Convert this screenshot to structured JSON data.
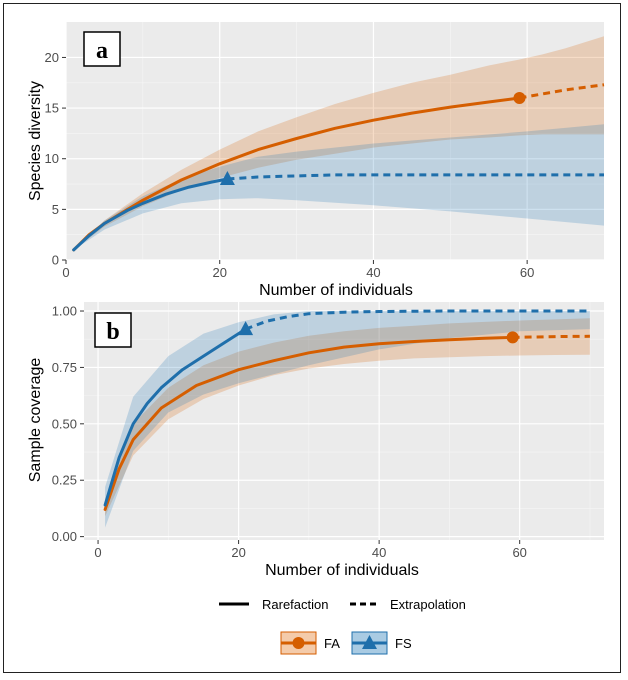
{
  "colors": {
    "FA": "#d55e00",
    "FS": "#1f6fab",
    "panel_bg": "#ebebeb",
    "grid": "#ffffff"
  },
  "legend": {
    "line_types": [
      "Rarefaction",
      "Extrapolation"
    ],
    "groups": [
      "FA",
      "FS"
    ]
  },
  "chart_data": [
    {
      "type": "line",
      "panel_label": "a",
      "title": "",
      "xlabel": "Number of individuals",
      "ylabel": "Species diversity",
      "xlim": [
        0,
        70
      ],
      "ylim": [
        0,
        23.5
      ],
      "xticks": [
        0,
        20,
        40,
        60
      ],
      "yticks": [
        0,
        5,
        10,
        15,
        20
      ],
      "grid": true,
      "series": [
        {
          "name": "FA",
          "observed": {
            "x": 59,
            "y": 16.0
          },
          "marker": "circle",
          "rarefaction": {
            "x": [
              1,
              3,
              5,
              8,
              10,
              15,
              20,
              25,
              30,
              35,
              40,
              45,
              50,
              55,
              59
            ],
            "y": [
              1.0,
              2.5,
              3.6,
              5.0,
              5.9,
              7.9,
              9.5,
              10.9,
              12.0,
              13.0,
              13.8,
              14.5,
              15.1,
              15.6,
              16.0
            ]
          },
          "extrapolation": {
            "x": [
              59,
              62,
              65,
              68,
              70
            ],
            "y": [
              16.0,
              16.4,
              16.8,
              17.1,
              17.3
            ]
          },
          "ci_lower": {
            "x": [
              1,
              5,
              10,
              15,
              20,
              25,
              30,
              35,
              40,
              45,
              50,
              55,
              59,
              62,
              65,
              70
            ],
            "y": [
              1.0,
              3.3,
              5.3,
              6.9,
              8.1,
              9.1,
              9.9,
              10.5,
              11.1,
              11.5,
              11.9,
              12.1,
              12.3,
              12.4,
              12.4,
              12.4
            ]
          },
          "ci_upper": {
            "x": [
              1,
              5,
              10,
              15,
              20,
              25,
              30,
              35,
              40,
              45,
              50,
              55,
              59,
              62,
              65,
              70
            ],
            "y": [
              1.0,
              3.9,
              6.6,
              8.9,
              10.9,
              12.7,
              14.1,
              15.4,
              16.5,
              17.5,
              18.3,
              19.2,
              19.8,
              20.3,
              20.9,
              22.1
            ]
          }
        },
        {
          "name": "FS",
          "observed": {
            "x": 21,
            "y": 8.0
          },
          "marker": "triangle",
          "rarefaction": {
            "x": [
              1,
              3,
              5,
              8,
              10,
              13,
              16,
              19,
              21
            ],
            "y": [
              1.0,
              2.4,
              3.6,
              4.9,
              5.6,
              6.5,
              7.2,
              7.7,
              8.0
            ]
          },
          "extrapolation": {
            "x": [
              21,
              25,
              30,
              35,
              40,
              50,
              60,
              70
            ],
            "y": [
              8.0,
              8.2,
              8.3,
              8.4,
              8.4,
              8.4,
              8.4,
              8.4
            ]
          },
          "ci_lower": {
            "x": [
              1,
              5,
              10,
              15,
              20,
              25,
              30,
              40,
              50,
              60,
              70
            ],
            "y": [
              1.0,
              3.0,
              4.6,
              5.6,
              6.0,
              6.1,
              5.9,
              5.4,
              4.8,
              4.1,
              3.4
            ]
          },
          "ci_upper": {
            "x": [
              1,
              5,
              10,
              15,
              20,
              25,
              30,
              40,
              50,
              60,
              70
            ],
            "y": [
              1.0,
              3.9,
              6.3,
              8.0,
              9.2,
              10.2,
              10.7,
              11.5,
              12.1,
              12.7,
              13.4
            ]
          }
        }
      ]
    },
    {
      "type": "line",
      "panel_label": "b",
      "title": "",
      "xlabel": "Number of individuals",
      "ylabel": "Sample coverage",
      "xlim": [
        -2,
        72
      ],
      "ylim": [
        -0.015,
        1.04
      ],
      "xticks": [
        0,
        20,
        40,
        60
      ],
      "yticks": [
        0.0,
        0.25,
        0.5,
        0.75,
        1.0
      ],
      "grid": true,
      "series": [
        {
          "name": "FA",
          "observed": {
            "x": 59,
            "y": 0.883
          },
          "marker": "circle",
          "rarefaction": {
            "x": [
              1,
              3,
              5,
              9,
              14,
              20,
              25,
              30,
              35,
              40,
              45,
              50,
              55,
              59
            ],
            "y": [
              0.12,
              0.3,
              0.43,
              0.57,
              0.67,
              0.74,
              0.78,
              0.815,
              0.84,
              0.855,
              0.865,
              0.873,
              0.879,
              0.883
            ]
          },
          "extrapolation": {
            "x": [
              59,
              62,
              66,
              70
            ],
            "y": [
              0.883,
              0.885,
              0.887,
              0.888
            ]
          },
          "ci_lower": {
            "x": [
              1,
              5,
              10,
              15,
              20,
              25,
              30,
              35,
              40,
              45,
              50,
              55,
              60,
              65,
              70
            ],
            "y": [
              0.09,
              0.36,
              0.52,
              0.61,
              0.67,
              0.715,
              0.745,
              0.765,
              0.78,
              0.79,
              0.795,
              0.8,
              0.803,
              0.805,
              0.806
            ]
          },
          "ci_upper": {
            "x": [
              1,
              5,
              10,
              15,
              20,
              25,
              30,
              35,
              40,
              45,
              50,
              55,
              60,
              65,
              70
            ],
            "y": [
              0.16,
              0.5,
              0.66,
              0.76,
              0.82,
              0.86,
              0.89,
              0.91,
              0.925,
              0.935,
              0.945,
              0.952,
              0.958,
              0.963,
              0.968
            ]
          }
        },
        {
          "name": "FS",
          "observed": {
            "x": 21,
            "y": 0.92
          },
          "marker": "triangle",
          "rarefaction": {
            "x": [
              1,
              3,
              5,
              7,
              9,
              12,
              15,
              18,
              21
            ],
            "y": [
              0.14,
              0.35,
              0.5,
              0.59,
              0.66,
              0.74,
              0.8,
              0.86,
              0.92
            ]
          },
          "extrapolation": {
            "x": [
              21,
              24,
              27,
              30,
              35,
              40,
              50,
              60,
              70
            ],
            "y": [
              0.92,
              0.955,
              0.975,
              0.988,
              0.995,
              0.998,
              1.0,
              1.0,
              1.0
            ]
          },
          "ci_lower": {
            "x": [
              1,
              5,
              10,
              15,
              20,
              25,
              30,
              40,
              50,
              60,
              70
            ],
            "y": [
              0.04,
              0.38,
              0.55,
              0.63,
              0.68,
              0.72,
              0.76,
              0.83,
              0.88,
              0.91,
              0.92
            ]
          },
          "ci_upper": {
            "x": [
              1,
              5,
              10,
              15,
              20,
              25,
              30,
              40,
              50,
              60,
              70
            ],
            "y": [
              0.22,
              0.62,
              0.8,
              0.9,
              0.95,
              0.985,
              1.0,
              1.0,
              1.0,
              1.0,
              1.0
            ]
          }
        }
      ]
    }
  ]
}
